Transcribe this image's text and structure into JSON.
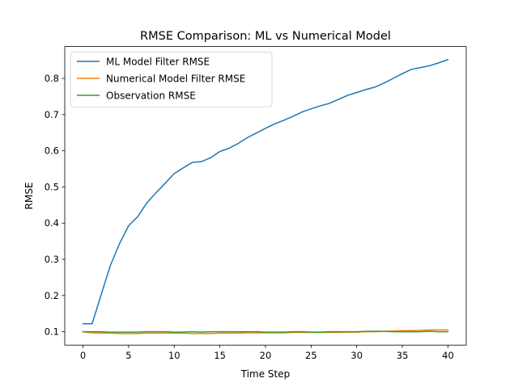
{
  "chart_data": {
    "type": "line",
    "title": "RMSE Comparison: ML vs Numerical Model",
    "xlabel": "Time Step",
    "ylabel": "RMSE",
    "xlim": [
      -2,
      42
    ],
    "ylim": [
      0.063,
      0.888
    ],
    "xticks": [
      0,
      5,
      10,
      15,
      20,
      25,
      30,
      35,
      40
    ],
    "yticks": [
      0.1,
      0.2,
      0.3,
      0.4,
      0.5,
      0.6,
      0.7,
      0.8
    ],
    "grid": false,
    "legend_position": "upper left",
    "x": [
      0,
      1,
      2,
      3,
      4,
      5,
      6,
      7,
      8,
      9,
      10,
      11,
      12,
      13,
      14,
      15,
      16,
      17,
      18,
      19,
      20,
      21,
      22,
      23,
      24,
      25,
      26,
      27,
      28,
      29,
      30,
      31,
      32,
      33,
      34,
      35,
      36,
      37,
      38,
      39,
      40
    ],
    "series": [
      {
        "name": "ML Model Filter RMSE",
        "color": "#1f77b4",
        "values": [
          0.122,
          0.122,
          0.203,
          0.283,
          0.343,
          0.393,
          0.418,
          0.456,
          0.484,
          0.51,
          0.537,
          0.553,
          0.568,
          0.57,
          0.581,
          0.598,
          0.607,
          0.62,
          0.636,
          0.649,
          0.662,
          0.674,
          0.684,
          0.695,
          0.707,
          0.716,
          0.724,
          0.731,
          0.742,
          0.753,
          0.761,
          0.769,
          0.776,
          0.787,
          0.8,
          0.813,
          0.825,
          0.83,
          0.835,
          0.843,
          0.852
        ]
      },
      {
        "name": "Numerical Model Filter RMSE",
        "color": "#ff7f0e",
        "values": [
          0.1,
          0.097,
          0.096,
          0.096,
          0.095,
          0.095,
          0.095,
          0.096,
          0.096,
          0.096,
          0.096,
          0.096,
          0.095,
          0.095,
          0.095,
          0.096,
          0.096,
          0.096,
          0.097,
          0.097,
          0.097,
          0.097,
          0.097,
          0.098,
          0.098,
          0.098,
          0.098,
          0.098,
          0.098,
          0.099,
          0.099,
          0.1,
          0.1,
          0.101,
          0.102,
          0.103,
          0.103,
          0.104,
          0.105,
          0.105,
          0.105
        ]
      },
      {
        "name": "Observation RMSE",
        "color": "#2ca02c",
        "values": [
          0.1,
          0.1,
          0.1,
          0.099,
          0.099,
          0.099,
          0.099,
          0.1,
          0.1,
          0.1,
          0.099,
          0.099,
          0.1,
          0.099,
          0.1,
          0.1,
          0.1,
          0.1,
          0.1,
          0.1,
          0.099,
          0.099,
          0.099,
          0.1,
          0.1,
          0.099,
          0.099,
          0.1,
          0.1,
          0.1,
          0.1,
          0.101,
          0.101,
          0.101,
          0.1,
          0.1,
          0.1,
          0.1,
          0.101,
          0.1,
          0.1
        ]
      }
    ]
  }
}
